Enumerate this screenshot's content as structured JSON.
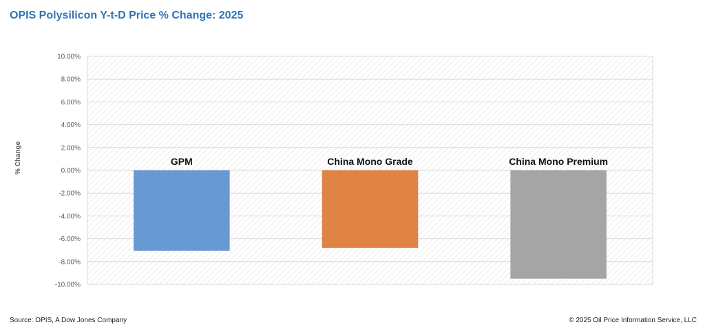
{
  "header": {
    "title": "OPIS Polysilicon Y-t-D Price % Change: 2025"
  },
  "footer": {
    "source": "Source: OPIS, A Dow Jones Company",
    "copyright": "© 2025 Oil Price Information Service, LLC"
  },
  "chart_data": {
    "type": "bar",
    "title": "OPIS Polysilicon Y-t-D Price % Change: 2025",
    "xlabel": "",
    "ylabel": "% Change",
    "categories": [
      "GPM",
      "China Mono Grade",
      "China Mono Premium"
    ],
    "values": [
      -7.05,
      -6.8,
      -9.5
    ],
    "colors": [
      "#6899d2",
      "#e08446",
      "#a5a5a5"
    ],
    "ylim": [
      -10,
      10
    ],
    "yticks": [
      10,
      8,
      6,
      4,
      2,
      0,
      -2,
      -4,
      -6,
      -8,
      -10
    ],
    "ytick_labels": [
      "10.00%",
      "8.00%",
      "6.00%",
      "4.00%",
      "2.00%",
      "0.00%",
      "-2.00%",
      "-4.00%",
      "-6.00%",
      "-8.00%",
      "-10.00%"
    ],
    "data_labels": [
      "GPM",
      "China Mono Grade",
      "China Mono Premium"
    ],
    "grid": true,
    "legend": "none"
  }
}
